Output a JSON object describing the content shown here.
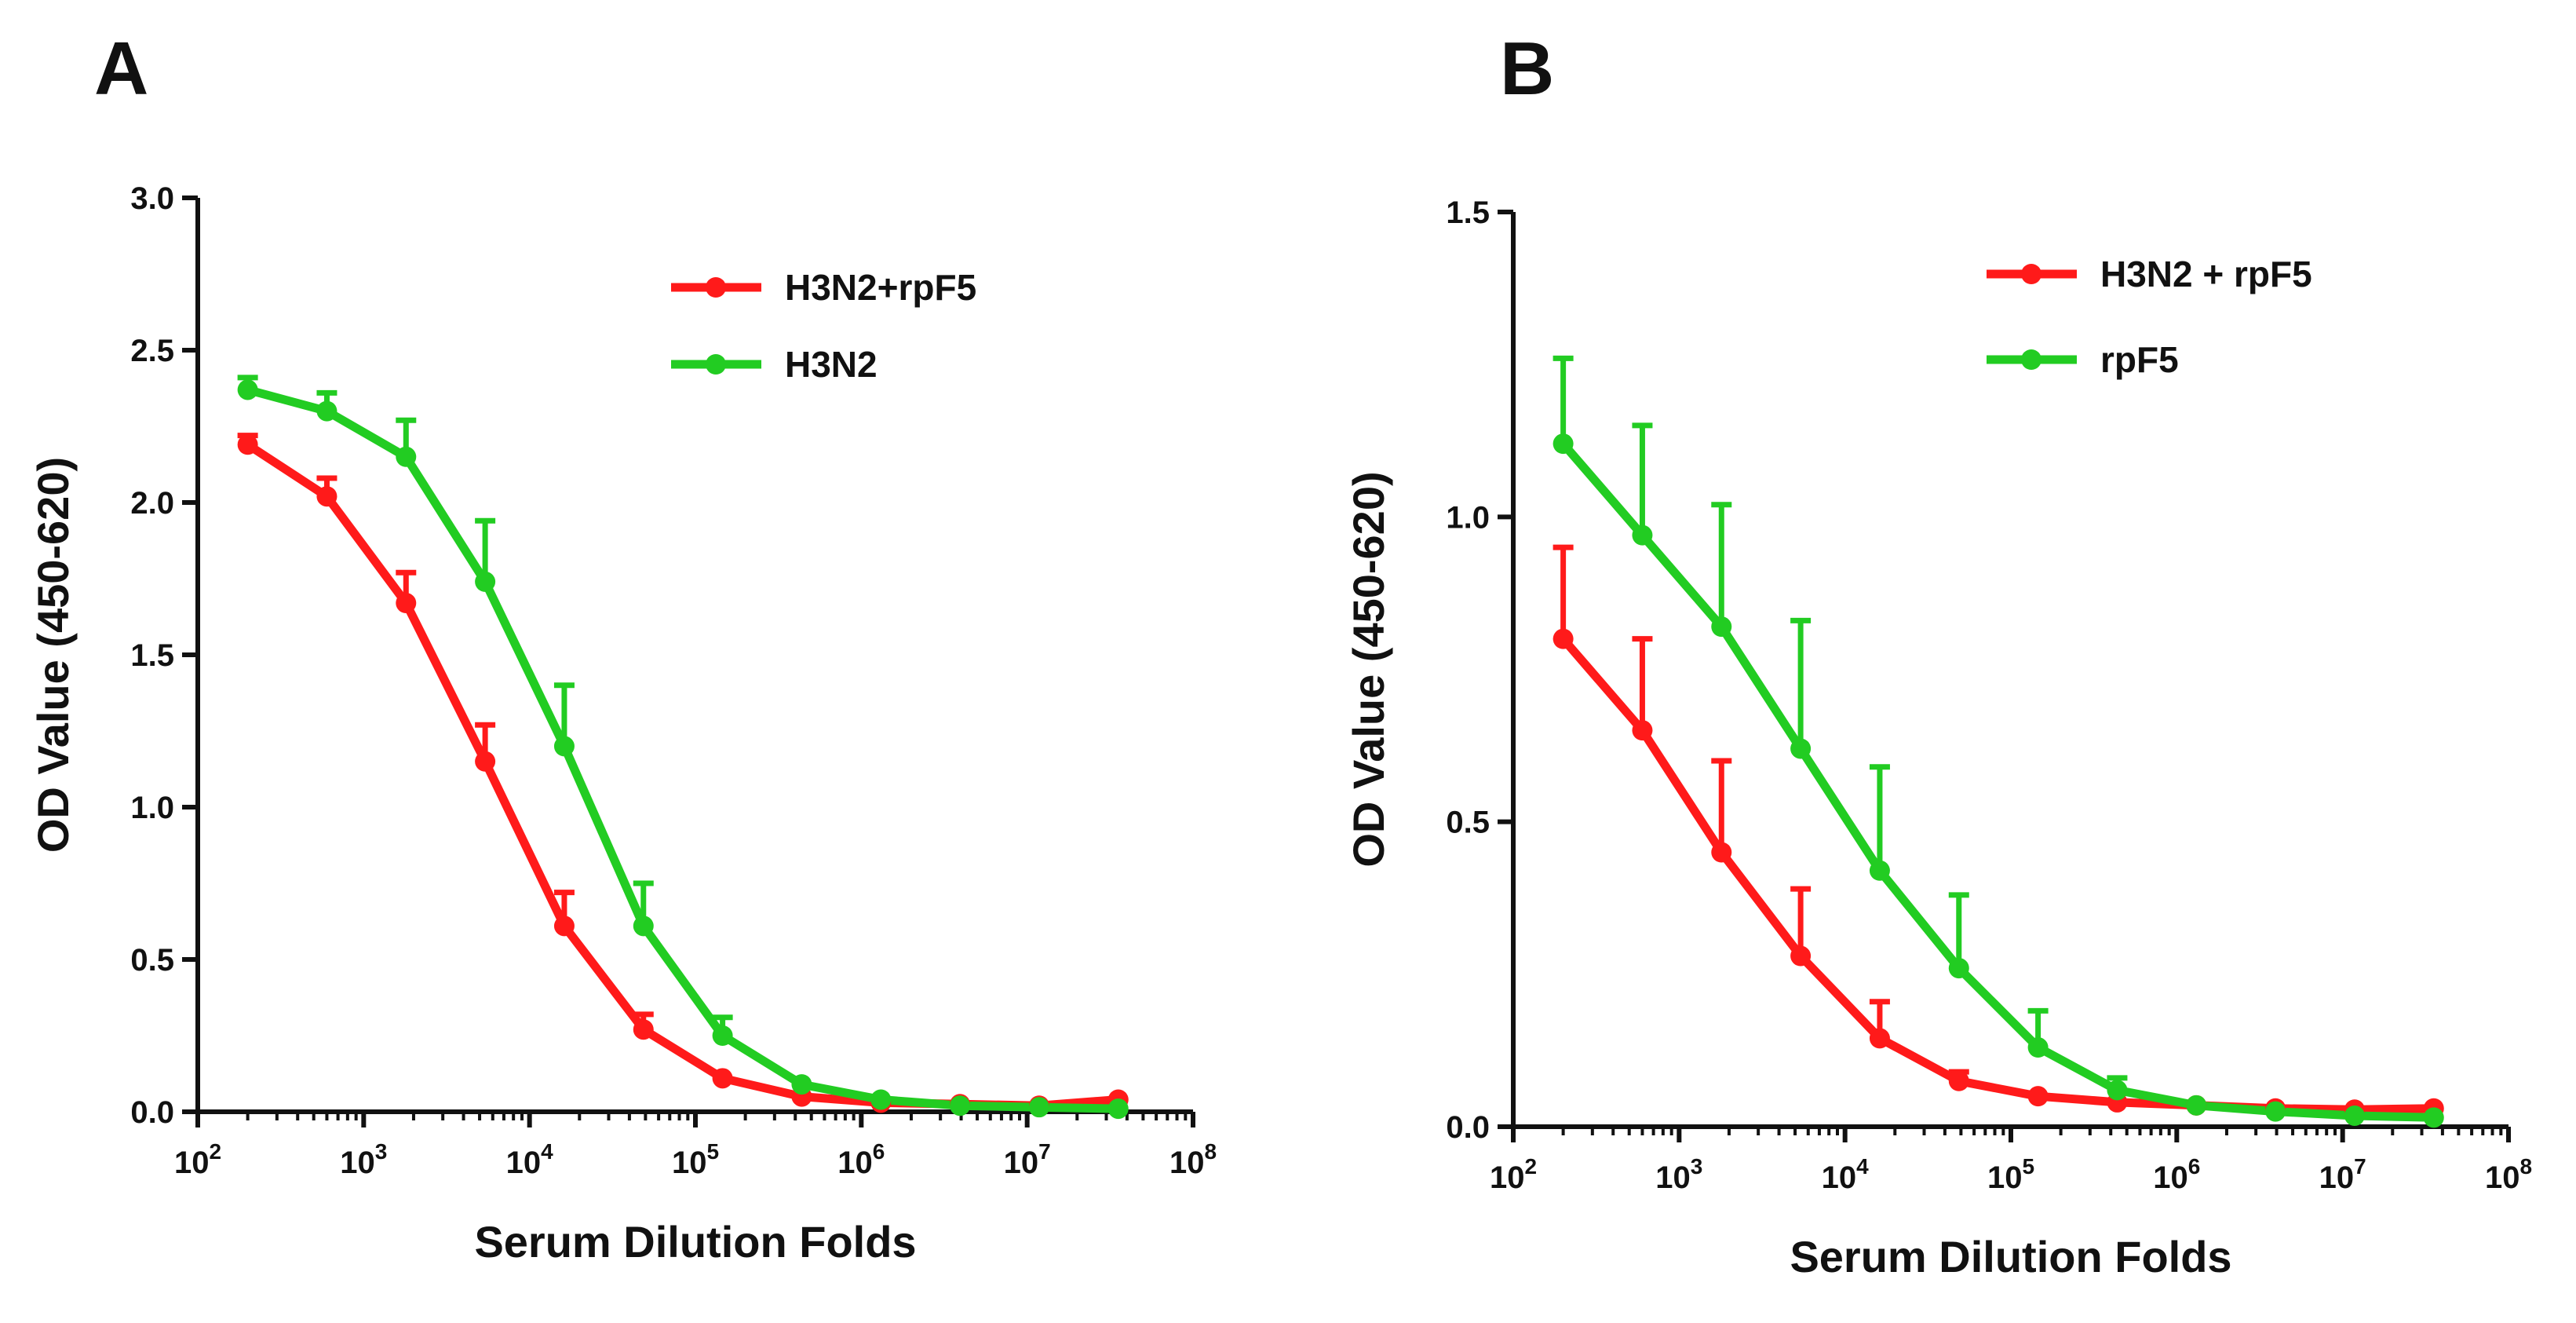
{
  "chart_data": [
    {
      "panel_label": "A",
      "type": "line",
      "xlabel": "Serum Dilution Folds",
      "ylabel": "OD Value (450-620)",
      "x_scale": "log10",
      "xlim": [
        100,
        100000000
      ],
      "ylim": [
        0,
        3.0
      ],
      "xtick_labels": [
        {
          "base": "10",
          "exp": "2"
        },
        {
          "base": "10",
          "exp": "3"
        },
        {
          "base": "10",
          "exp": "4"
        },
        {
          "base": "10",
          "exp": "5"
        },
        {
          "base": "10",
          "exp": "6"
        },
        {
          "base": "10",
          "exp": "7"
        },
        {
          "base": "10",
          "exp": "8"
        }
      ],
      "yticks": [
        0,
        0.5,
        1.0,
        1.5,
        2.0,
        2.5,
        3.0
      ],
      "ytick_labels": [
        "0.0",
        "0.5",
        "1.0",
        "1.5",
        "2.0",
        "2.5",
        "3.0"
      ],
      "legend_position": "top-right",
      "x": [
        200,
        600,
        1800,
        5400,
        16200,
        48600,
        145800,
        437400,
        1312200,
        3936600,
        11809800,
        35429400
      ],
      "series": [
        {
          "name": "H3N2+rpF5",
          "color": "#ff1a1a",
          "values": [
            2.19,
            2.02,
            1.67,
            1.15,
            0.61,
            0.27,
            0.11,
            0.05,
            0.03,
            0.025,
            0.02,
            0.04
          ],
          "error": [
            0.03,
            0.06,
            0.1,
            0.12,
            0.11,
            0.05,
            0.0,
            0.0,
            0.0,
            0.0,
            0.0,
            0.0
          ]
        },
        {
          "name": "H3N2",
          "color": "#22cc22",
          "values": [
            2.37,
            2.3,
            2.15,
            1.74,
            1.2,
            0.61,
            0.25,
            0.09,
            0.04,
            0.02,
            0.015,
            0.01
          ],
          "error": [
            0.04,
            0.06,
            0.12,
            0.2,
            0.2,
            0.14,
            0.06,
            0.0,
            0.0,
            0.0,
            0.0,
            0.0
          ]
        }
      ]
    },
    {
      "panel_label": "B",
      "type": "line",
      "xlabel": "Serum Dilution Folds",
      "ylabel": "OD Value (450-620)",
      "x_scale": "log10",
      "xlim": [
        100,
        100000000
      ],
      "ylim": [
        0,
        1.5
      ],
      "xtick_labels": [
        {
          "base": "10",
          "exp": "2"
        },
        {
          "base": "10",
          "exp": "3"
        },
        {
          "base": "10",
          "exp": "4"
        },
        {
          "base": "10",
          "exp": "5"
        },
        {
          "base": "10",
          "exp": "6"
        },
        {
          "base": "10",
          "exp": "7"
        },
        {
          "base": "10",
          "exp": "8"
        }
      ],
      "yticks": [
        0,
        0.5,
        1.0,
        1.5
      ],
      "ytick_labels": [
        "0.0",
        "0.5",
        "1.0",
        "1.5"
      ],
      "legend_position": "top-right",
      "x": [
        200,
        600,
        1800,
        5400,
        16200,
        48600,
        145800,
        437400,
        1312200,
        3936600,
        11809800,
        35429400
      ],
      "series": [
        {
          "name": "H3N2 + rpF5",
          "color": "#ff1a1a",
          "values": [
            0.8,
            0.65,
            0.45,
            0.28,
            0.145,
            0.075,
            0.05,
            0.04,
            0.035,
            0.03,
            0.028,
            0.03
          ],
          "error": [
            0.15,
            0.15,
            0.15,
            0.11,
            0.06,
            0.015,
            0.0,
            0.0,
            0.0,
            0.0,
            0.0,
            0.0
          ]
        },
        {
          "name": "rpF5",
          "color": "#22cc22",
          "values": [
            1.12,
            0.97,
            0.82,
            0.62,
            0.42,
            0.26,
            0.13,
            0.06,
            0.035,
            0.025,
            0.018,
            0.015
          ],
          "error": [
            0.14,
            0.18,
            0.2,
            0.21,
            0.17,
            0.12,
            0.06,
            0.02,
            0.0,
            0.0,
            0.0,
            0.0
          ]
        }
      ]
    }
  ]
}
